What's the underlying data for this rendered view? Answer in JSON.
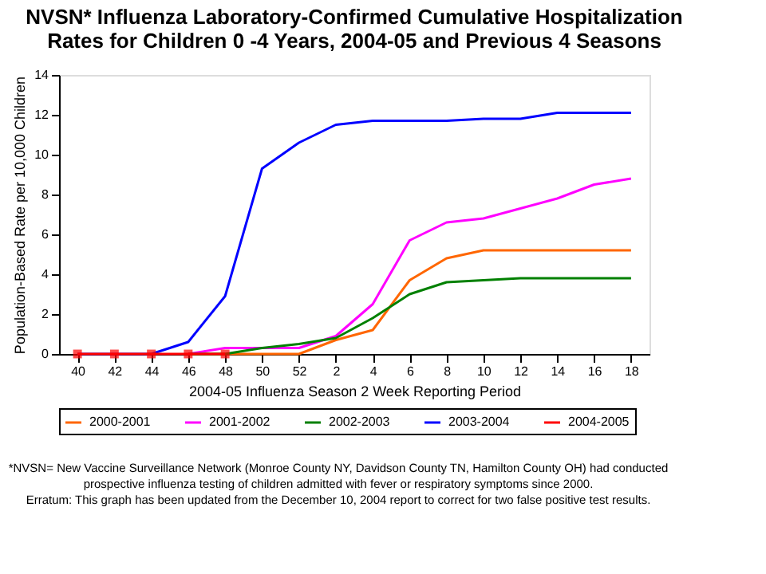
{
  "chart_data": {
    "type": "line",
    "title": "NVSN* Influenza Laboratory-Confirmed Cumulative Hospitalization Rates for Children 0 -4 Years, 2004-05 and Previous 4 Seasons",
    "xlabel": "2004-05 Influenza Season 2 Week Reporting Period",
    "ylabel": "Population-Based Rate per 10,000 Children",
    "categories": [
      "40",
      "42",
      "44",
      "46",
      "48",
      "50",
      "52",
      "2",
      "4",
      "6",
      "8",
      "10",
      "12",
      "14",
      "16",
      "18"
    ],
    "series": [
      {
        "name": "2000-2001",
        "color": "#ff6600",
        "marker": "none",
        "values": [
          null,
          null,
          null,
          0,
          0,
          0,
          0,
          0.7,
          1.2,
          3.7,
          4.8,
          5.2,
          5.2,
          5.2,
          5.2,
          5.2
        ]
      },
      {
        "name": "2001-2002",
        "color": "#ff00ff",
        "marker": "none",
        "values": [
          null,
          null,
          null,
          0,
          0.3,
          0.3,
          0.3,
          0.9,
          2.5,
          5.7,
          6.6,
          6.8,
          7.3,
          7.8,
          8.5,
          8.8
        ]
      },
      {
        "name": "2002-2003",
        "color": "#008000",
        "marker": "none",
        "values": [
          null,
          null,
          null,
          0,
          0,
          0.3,
          0.5,
          0.8,
          1.8,
          3.0,
          3.6,
          3.7,
          3.8,
          3.8,
          3.8,
          3.8
        ]
      },
      {
        "name": "2003-2004",
        "color": "#0000ff",
        "marker": "none",
        "values": [
          0,
          0,
          0,
          0.6,
          2.9,
          9.3,
          10.6,
          11.5,
          11.7,
          11.7,
          11.7,
          11.8,
          11.8,
          12.1,
          12.1,
          12.1
        ]
      },
      {
        "name": "2004-2005",
        "color": "#ff0000",
        "marker": "square",
        "values": [
          0,
          0,
          0,
          0,
          0,
          null,
          null,
          null,
          null,
          null,
          null,
          null,
          null,
          null,
          null,
          null
        ]
      }
    ],
    "ylim": [
      0,
      14
    ],
    "yticks": [
      0,
      2,
      4,
      6,
      8,
      10,
      12,
      14
    ],
    "grid": false,
    "legend": "bottom",
    "annotations": [
      "*NVSN= New Vaccine Surveillance Network (Monroe County NY, Davidson County TN, Hamilton County OH) had conducted prospective influenza testing of children admitted with fever or respiratory symptoms since 2000.",
      "Erratum: This graph has been updated from the December 10, 2004 report to correct for two false positive test results."
    ]
  }
}
